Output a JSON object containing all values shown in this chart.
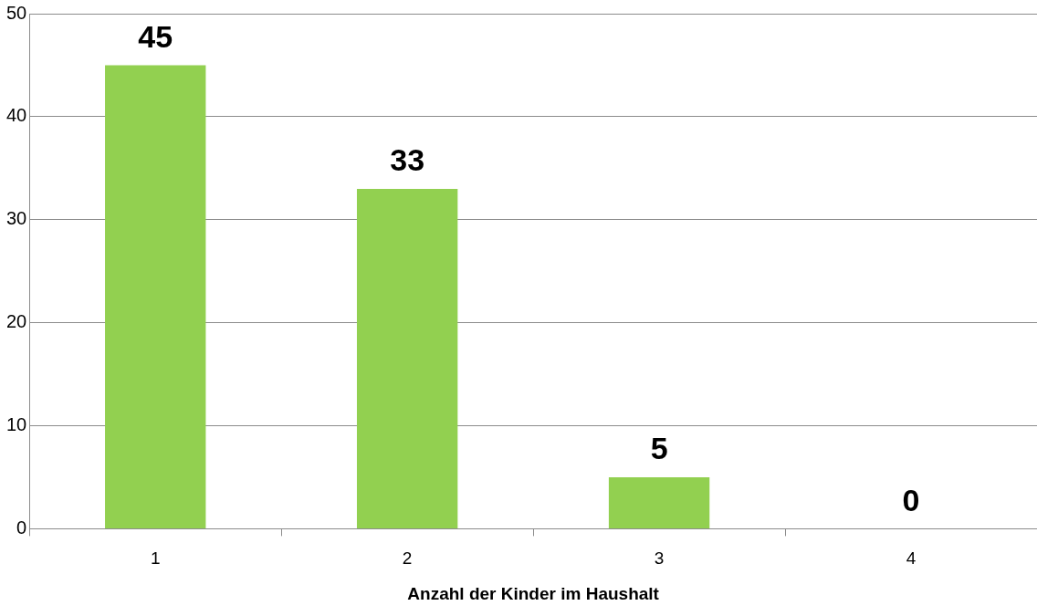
{
  "chart_data": {
    "type": "bar",
    "xlabel": "Anzahl der Kinder im Haushalt",
    "categories": [
      "1",
      "2",
      "3",
      "4"
    ],
    "values": [
      45,
      33,
      5,
      0
    ],
    "color": "#92d050",
    "ylim": [
      0,
      50
    ],
    "yticks": [
      0,
      10,
      20,
      30,
      40,
      50
    ],
    "grid": "y",
    "data_labels": true,
    "legend": false
  }
}
